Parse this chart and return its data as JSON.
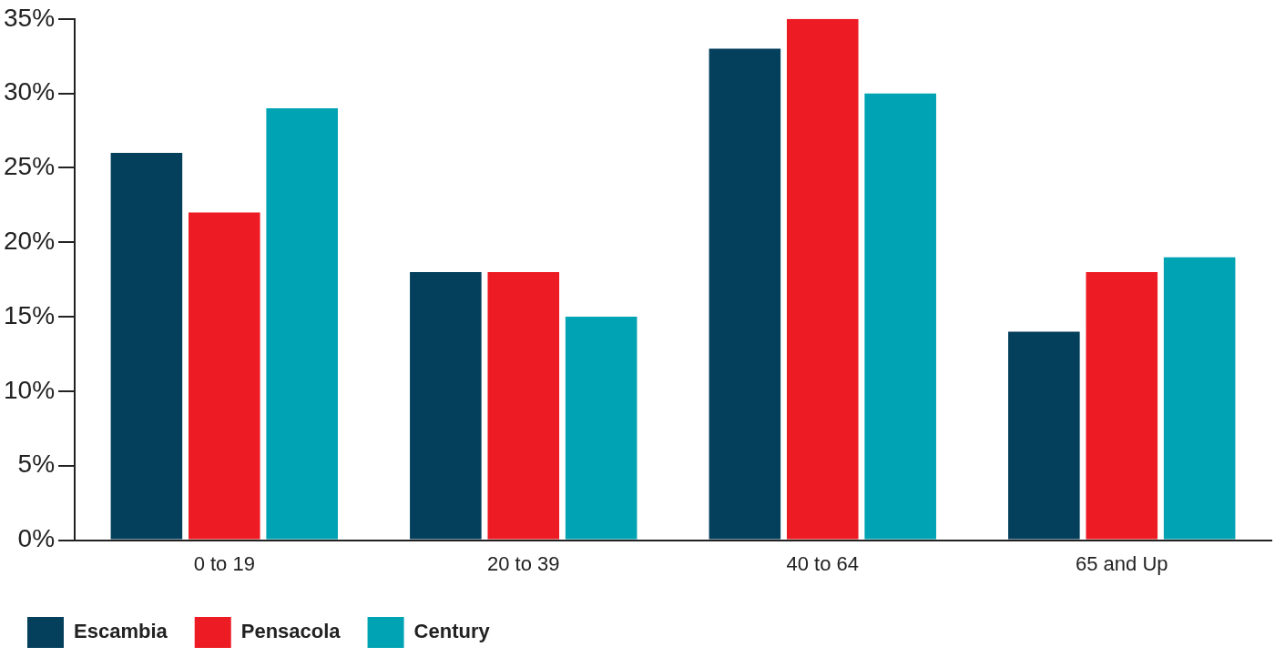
{
  "chart_data": {
    "type": "bar",
    "categories": [
      "0 to 19",
      "20 to 39",
      "40 to 64",
      "65 and Up"
    ],
    "series": [
      {
        "name": "Escambia",
        "color": "#043f5c",
        "values": [
          26,
          18,
          33,
          14
        ]
      },
      {
        "name": "Pensacola",
        "color": "#ed1c24",
        "values": [
          22,
          18,
          35,
          18
        ]
      },
      {
        "name": "Century",
        "color": "#00a3b3",
        "values": [
          29,
          15,
          30,
          19
        ]
      }
    ],
    "ylim": [
      0,
      35
    ],
    "yticks": [
      {
        "value": 0,
        "label": "0%"
      },
      {
        "value": 5,
        "label": "5%"
      },
      {
        "value": 10,
        "label": "10%"
      },
      {
        "value": 15,
        "label": "15%"
      },
      {
        "value": 20,
        "label": "20%"
      },
      {
        "value": 25,
        "label": "25%"
      },
      {
        "value": 30,
        "label": "30%"
      },
      {
        "value": 35,
        "label": "35%"
      }
    ],
    "grid": false,
    "legend": "bottom left"
  }
}
